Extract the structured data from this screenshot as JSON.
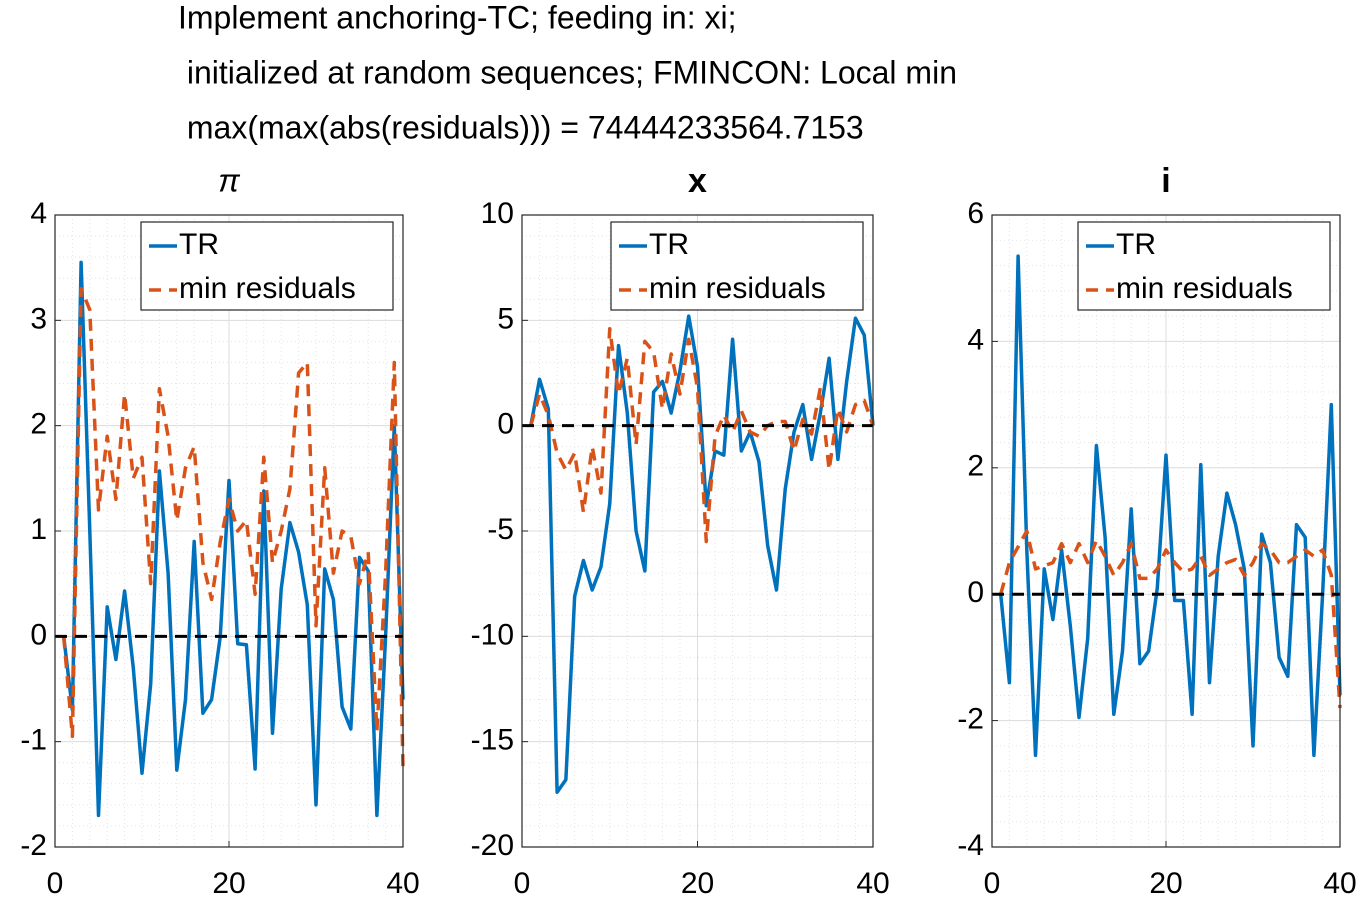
{
  "title": [
    "Implement anchoring-TC; feeding in: xi;",
    " initialized at random sequences; FMINCON: Local min",
    " max(max(abs(residuals))) = 74444233564.7153"
  ],
  "chart_data": [
    {
      "type": "line",
      "title": "π",
      "legend": "northeast",
      "grid": true,
      "minor_grid": true,
      "hline": 0,
      "x": [
        1,
        2,
        3,
        4,
        5,
        6,
        7,
        8,
        9,
        10,
        11,
        12,
        13,
        14,
        15,
        16,
        17,
        18,
        19,
        20,
        21,
        22,
        23,
        24,
        25,
        26,
        27,
        28,
        29,
        30,
        31,
        32,
        33,
        34,
        35,
        36,
        37,
        38,
        39,
        40
      ],
      "xlim": [
        0,
        40
      ],
      "xticks": [
        0,
        20,
        40
      ],
      "ylim": [
        -2,
        4
      ],
      "yticks": [
        -2,
        -1,
        0,
        1,
        2,
        3,
        4
      ],
      "series": [
        {
          "name": "TR",
          "color": "#0072bd",
          "style": "solid",
          "values": [
            0,
            -0.7,
            3.55,
            1.0,
            -1.7,
            0.28,
            -0.22,
            0.43,
            -0.3,
            -1.3,
            -0.45,
            1.57,
            0.6,
            -1.27,
            -0.6,
            0.9,
            -0.73,
            -0.6,
            0.0,
            1.48,
            -0.07,
            -0.08,
            -1.26,
            1.38,
            -0.92,
            0.45,
            1.08,
            0.8,
            0.3,
            -1.6,
            0.64,
            0.35,
            -0.67,
            -0.88,
            0.75,
            0.62,
            -1.7,
            0.0,
            2.0,
            -0.6
          ]
        },
        {
          "name": "min residuals",
          "color": "#d95319",
          "style": "dashed",
          "values": [
            0,
            -0.95,
            3.3,
            3.1,
            1.2,
            1.9,
            1.3,
            2.3,
            1.5,
            1.7,
            0.5,
            2.35,
            1.9,
            1.1,
            1.6,
            1.8,
            0.7,
            0.35,
            0.9,
            1.3,
            1.0,
            1.1,
            0.4,
            1.7,
            0.7,
            1.0,
            1.4,
            2.5,
            2.6,
            0.1,
            1.6,
            0.6,
            1.0,
            0.95,
            0.5,
            0.8,
            -0.9,
            0.6,
            2.6,
            -1.25
          ]
        }
      ]
    },
    {
      "type": "line",
      "title": "x",
      "legend": "northeast",
      "grid": true,
      "minor_grid": true,
      "hline": 0,
      "x": [
        1,
        2,
        3,
        4,
        5,
        6,
        7,
        8,
        9,
        10,
        11,
        12,
        13,
        14,
        15,
        16,
        17,
        18,
        19,
        20,
        21,
        22,
        23,
        24,
        25,
        26,
        27,
        28,
        29,
        30,
        31,
        32,
        33,
        34,
        35,
        36,
        37,
        38,
        39,
        40
      ],
      "xlim": [
        0,
        40
      ],
      "xticks": [
        0,
        20,
        40
      ],
      "ylim": [
        -20,
        10
      ],
      "yticks": [
        -20,
        -15,
        -10,
        -5,
        0,
        5,
        10
      ],
      "series": [
        {
          "name": "TR",
          "color": "#0072bd",
          "style": "solid",
          "values": [
            0,
            2.2,
            0.8,
            -17.4,
            -16.8,
            -8.1,
            -6.4,
            -7.8,
            -6.7,
            -3.7,
            3.8,
            0.6,
            -5.0,
            -6.9,
            1.6,
            2.1,
            0.6,
            2.6,
            5.2,
            2.8,
            -3.8,
            -1.2,
            -1.4,
            4.1,
            -1.2,
            -0.3,
            -1.7,
            -5.7,
            -7.8,
            -3.0,
            -0.3,
            1.0,
            -1.6,
            0.6,
            3.2,
            -1.6,
            2.1,
            5.1,
            4.3,
            0
          ]
        },
        {
          "name": "min residuals",
          "color": "#d95319",
          "style": "dashed",
          "values": [
            0,
            1.5,
            0.5,
            -1.3,
            -2.1,
            -1.3,
            -4.1,
            -1.0,
            -3.2,
            4.6,
            1.5,
            3.2,
            -0.9,
            4.0,
            3.5,
            0.8,
            3.4,
            1.5,
            4.1,
            1.8,
            -5.5,
            -0.5,
            0.5,
            -0.3,
            0.7,
            -0.3,
            -0.5,
            0,
            0.2,
            0.2,
            -1.2,
            0.3,
            -0.4,
            1.8,
            -2.1,
            0.8,
            -0.3,
            1.0,
            1.2,
            0
          ]
        }
      ]
    },
    {
      "type": "line",
      "title": "i",
      "legend": "northeast",
      "grid": true,
      "minor_grid": true,
      "hline": 0,
      "x": [
        1,
        2,
        3,
        4,
        5,
        6,
        7,
        8,
        9,
        10,
        11,
        12,
        13,
        14,
        15,
        16,
        17,
        18,
        19,
        20,
        21,
        22,
        23,
        24,
        25,
        26,
        27,
        28,
        29,
        30,
        31,
        32,
        33,
        34,
        35,
        36,
        37,
        38,
        39,
        40
      ],
      "xlim": [
        0,
        40
      ],
      "xticks": [
        0,
        20,
        40
      ],
      "ylim": [
        -4,
        6
      ],
      "yticks": [
        -4,
        -2,
        0,
        2,
        4,
        6
      ],
      "series": [
        {
          "name": "TR",
          "color": "#0072bd",
          "style": "solid",
          "values": [
            0,
            -1.4,
            5.35,
            0.7,
            -2.55,
            0.4,
            -0.4,
            0.7,
            -0.5,
            -1.95,
            -0.7,
            2.35,
            0.9,
            -1.9,
            -0.9,
            1.35,
            -1.1,
            -0.9,
            0.1,
            2.2,
            -0.1,
            -0.1,
            -1.9,
            2.05,
            -1.4,
            0.6,
            1.6,
            1.1,
            0.4,
            -2.4,
            0.95,
            0.5,
            -1.0,
            -1.3,
            1.1,
            0.9,
            -2.55,
            0,
            3.0,
            -1.6
          ]
        },
        {
          "name": "min residuals",
          "color": "#d95319",
          "style": "dashed",
          "values": [
            0,
            0.5,
            0.75,
            1.0,
            0.4,
            0.45,
            0.5,
            0.8,
            0.5,
            0.8,
            0.5,
            0.85,
            0.6,
            0.3,
            0.5,
            0.8,
            0.25,
            0.25,
            0.4,
            0.7,
            0.5,
            0.35,
            0.4,
            0.6,
            0.3,
            0.4,
            0.5,
            0.55,
            0.3,
            0.5,
            0.8,
            0.7,
            0.5,
            0.5,
            0.6,
            0.7,
            0.6,
            0.7,
            0.3,
            -1.8
          ]
        }
      ]
    }
  ]
}
